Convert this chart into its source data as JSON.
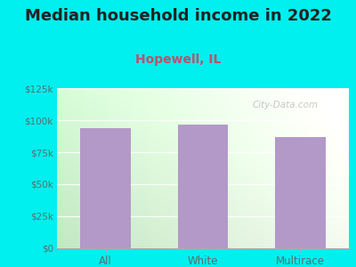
{
  "title": "Median household income in 2022",
  "subtitle": "Hopewell, IL",
  "categories": [
    "All",
    "White",
    "Multirace"
  ],
  "values": [
    93500,
    96500,
    87000
  ],
  "bar_color": "#b399c8",
  "background_color": "#00efef",
  "title_fontsize": 13,
  "title_color": "#222222",
  "subtitle_fontsize": 10,
  "subtitle_color": "#c0506a",
  "tick_label_color": "#557070",
  "axis_label_color": "#557070",
  "ylim": [
    0,
    125000
  ],
  "yticks": [
    0,
    25000,
    50000,
    75000,
    100000,
    125000
  ],
  "ytick_labels": [
    "$0",
    "$25k",
    "$50k",
    "$75k",
    "$100k",
    "$125k"
  ],
  "watermark": "City-Data.com",
  "grad_left": "#c2e8c2",
  "grad_right": "#f2f8ee",
  "grad_top": "#f5faf5",
  "grad_bottom": "#d0ecd0"
}
